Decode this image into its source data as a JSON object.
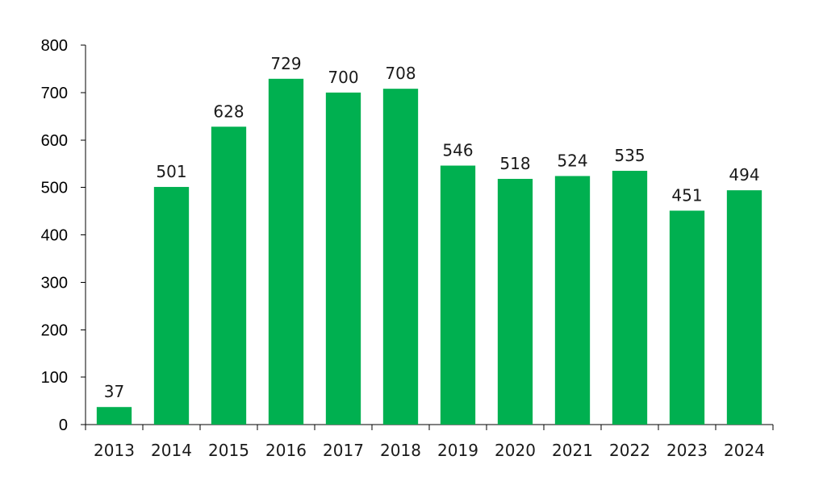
{
  "chart_data": {
    "type": "bar",
    "categories": [
      "2013",
      "2014",
      "2015",
      "2016",
      "2017",
      "2018",
      "2019",
      "2020",
      "2021",
      "2022",
      "2023",
      "2024"
    ],
    "values": [
      37,
      501,
      628,
      729,
      700,
      708,
      546,
      518,
      524,
      535,
      451,
      494
    ],
    "data_labels": [
      "37",
      "501",
      "628",
      "729",
      "700",
      "708",
      "546",
      "518",
      "524",
      "535",
      "451",
      "494"
    ],
    "y_ticks": [
      "0",
      "100",
      "200",
      "300",
      "400",
      "500",
      "600",
      "700",
      "800"
    ],
    "ylim": [
      0,
      800
    ],
    "grid": false,
    "legend": "none",
    "bar_color": "#00b050"
  }
}
